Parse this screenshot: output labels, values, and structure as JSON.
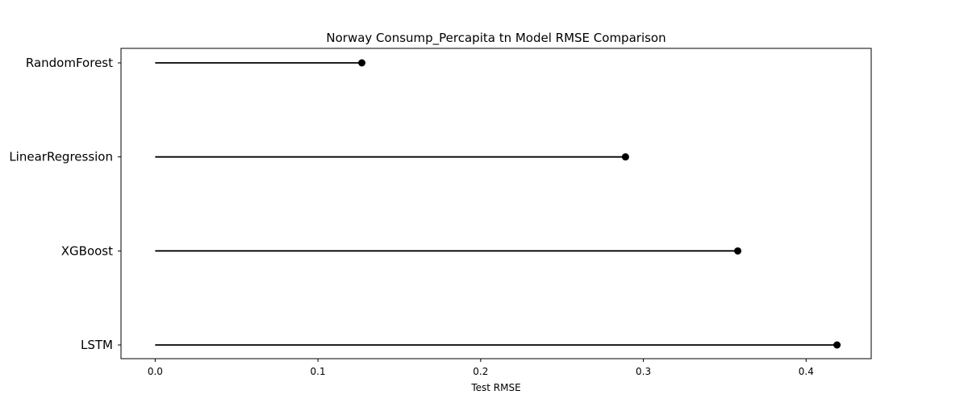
{
  "chart_data": {
    "type": "lollipop",
    "title": "Norway Consump_Percapita tn Model RMSE Comparison",
    "xlabel": "Test RMSE",
    "ylabel": "",
    "categories": [
      "RandomForest",
      "LinearRegression",
      "XGBoost",
      "LSTM"
    ],
    "values": [
      0.127,
      0.289,
      0.358,
      0.419
    ],
    "xlim": [
      -0.021,
      0.44
    ],
    "xticks": [
      0.0,
      0.1,
      0.2,
      0.3,
      0.4
    ],
    "xtick_labels": [
      "0.0",
      "0.1",
      "0.2",
      "0.3",
      "0.4"
    ],
    "grid": false,
    "colors": {
      "stem": "#000000",
      "marker": "#000000",
      "frame": "#000000"
    }
  }
}
